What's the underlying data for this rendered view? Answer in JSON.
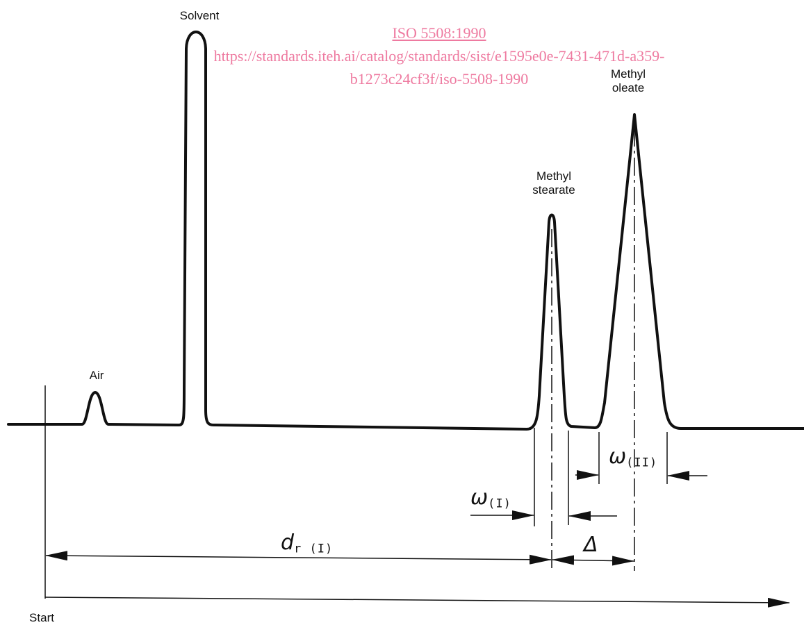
{
  "watermark": {
    "title": "ISO 5508:1990",
    "url_line1": "https://standards.iteh.ai/catalog/standards/sist/e1595e0e-7431-471d-a359-",
    "url_line2": "b1273c24cf3f/iso-5508-1990",
    "color": "#ee7aa0"
  },
  "peaks": {
    "solvent": "Solvent",
    "air": "Air",
    "stearate_line1": "Methyl",
    "stearate_line2": "stearate",
    "oleate_line1": "Methyl",
    "oleate_line2": "oleate"
  },
  "axis": {
    "start": "Start"
  },
  "symbols": {
    "width_I": "ω",
    "width_I_sub": "(I)",
    "width_II": "ω",
    "width_II_sub": "(II)",
    "distance": "d",
    "distance_sub": "r (I)",
    "delta": "Δ"
  },
  "colors": {
    "line": "#111111"
  }
}
